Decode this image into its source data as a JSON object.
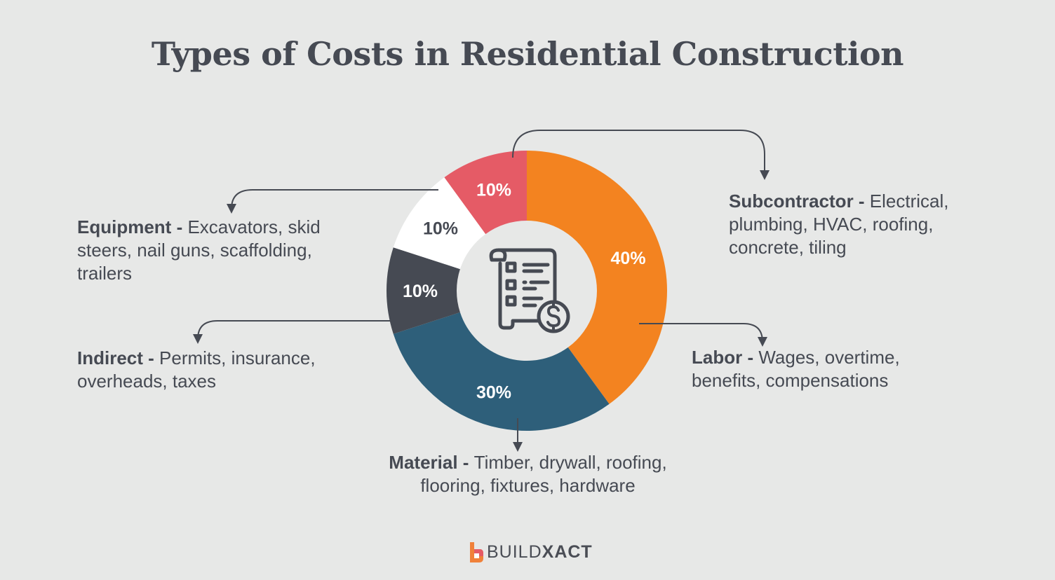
{
  "title": "Types of Costs in Residential Construction",
  "chart_data": {
    "type": "pie",
    "donut": true,
    "title": "Types of Costs in Residential Construction",
    "slices": [
      {
        "name": "Labor",
        "value": 40,
        "label": "40%",
        "color": "#f38320",
        "label_color": "#ffffff",
        "description": "Wages, overtime, benefits, compensations"
      },
      {
        "name": "Material",
        "value": 30,
        "label": "30%",
        "color": "#2e5f7a",
        "label_color": "#ffffff",
        "description": "Timber, drywall, roofing, flooring, fixtures, hardware"
      },
      {
        "name": "Indirect",
        "value": 10,
        "label": "10%",
        "color": "#464a53",
        "label_color": "#ffffff",
        "description": "Permits, insurance, overheads, taxes"
      },
      {
        "name": "Equipment",
        "value": 10,
        "label": "10%",
        "color": "#ffffff",
        "label_color": "#464a53",
        "description": "Excavators, skid steers, nail guns, scaffolding, trailers"
      },
      {
        "name": "Subcontractor",
        "value": 10,
        "label": "10%",
        "color": "#e55b66",
        "label_color": "#ffffff",
        "description": "Electrical, plumbing, HVAC, roofing, concrete, tiling"
      }
    ],
    "center_icon": "invoice-dollar-icon"
  },
  "separator": " - ",
  "brand": {
    "part1": "BUILD",
    "part2": "XACT"
  }
}
